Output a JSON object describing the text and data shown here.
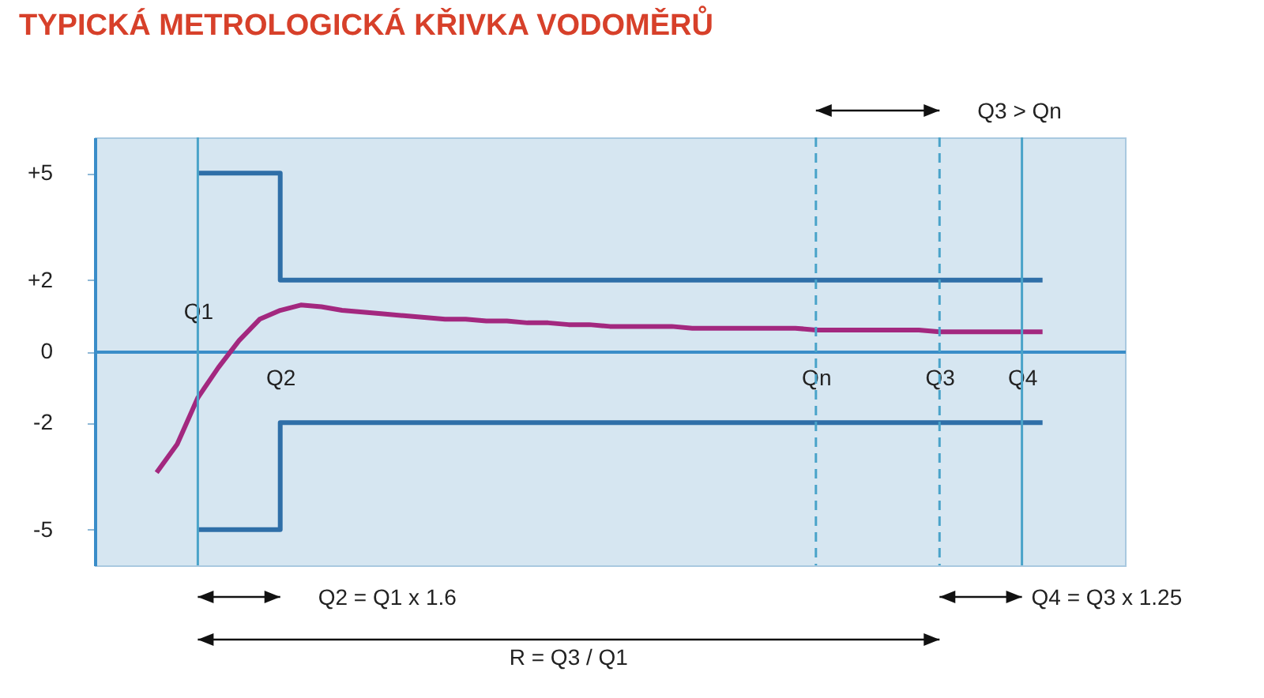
{
  "chart_data": {
    "type": "line",
    "title": "TYPICKÁ METROLOGICKÁ KŘIVKA VODOMĚRŮ",
    "categories": [
      null,
      null,
      null,
      null,
      null,
      "Q1",
      null,
      null,
      null,
      "Q2",
      null,
      null,
      null,
      null,
      null,
      null,
      null,
      null,
      null,
      null,
      null,
      null,
      null,
      null,
      null,
      null,
      null,
      null,
      null,
      null,
      null,
      null,
      null,
      null,
      null,
      "Qn",
      null,
      null,
      null,
      null,
      null,
      "Q3",
      null,
      null,
      null,
      "Q4",
      null,
      null,
      null,
      null,
      null
    ],
    "ylim": [
      -6,
      6
    ],
    "yticks": [
      -5,
      -2,
      0,
      {
        "value": 2,
        "label": "+2"
      },
      {
        "value": 5,
        "label": "+5"
      }
    ],
    "series": [
      {
        "type": "step",
        "color": "#2f6fa8",
        "values": [
          null,
          null,
          null,
          null,
          null,
          5,
          5,
          5,
          5,
          2,
          2,
          2,
          2,
          2,
          2,
          2,
          2,
          2,
          2,
          2,
          2,
          2,
          2,
          2,
          2,
          2,
          2,
          2,
          2,
          2,
          2,
          2,
          2,
          2,
          2,
          2,
          2,
          2,
          2,
          2,
          2,
          2,
          2,
          2,
          2,
          2,
          2,
          null,
          null,
          null,
          null
        ]
      },
      {
        "type": "step",
        "color": "#2f6fa8",
        "values": [
          null,
          null,
          null,
          null,
          null,
          -5,
          -5,
          -5,
          -5,
          -2,
          -2,
          -2,
          -2,
          -2,
          -2,
          -2,
          -2,
          -2,
          -2,
          -2,
          -2,
          -2,
          -2,
          -2,
          -2,
          -2,
          -2,
          -2,
          -2,
          -2,
          -2,
          -2,
          -2,
          -2,
          -2,
          -2,
          -2,
          -2,
          -2,
          -2,
          -2,
          -2,
          -2,
          -2,
          -2,
          -2,
          -2,
          null,
          null,
          null,
          null
        ]
      },
      {
        "color": "#a3287f",
        "values": [
          null,
          null,
          null,
          -3.4,
          -2.6,
          -1.3,
          -0.45,
          0.3,
          0.9,
          1.15,
          1.3,
          1.25,
          1.15,
          1.1,
          1.05,
          1,
          0.95,
          0.9,
          0.9,
          0.85,
          0.85,
          0.8,
          0.8,
          0.75,
          0.75,
          0.7,
          0.7,
          0.7,
          0.7,
          0.65,
          0.65,
          0.65,
          0.65,
          0.65,
          0.65,
          0.6,
          0.6,
          0.6,
          0.6,
          0.6,
          0.6,
          0.55,
          0.55,
          0.55,
          0.55,
          0.55,
          0.55,
          null,
          null,
          null,
          null
        ]
      }
    ],
    "ref_lines": [
      {
        "axis": "x",
        "value": "Q1",
        "color": "#4aa3c9",
        "line_style": "solid"
      },
      {
        "axis": "x",
        "value": "Qn",
        "color": "#4aa3c9",
        "line_style": "dashed"
      },
      {
        "axis": "x",
        "value": "Q3",
        "color": "#4aa3c9",
        "line_style": "dashed"
      },
      {
        "axis": "x",
        "value": "Q4",
        "color": "#4aa3c9",
        "line_style": "solid"
      }
    ],
    "annotations": [
      "Q3 > Qn",
      "Q2 = Q1 x 1.6",
      "R = Q3 / Q1",
      "Q4 = Q3 x 1.25"
    ]
  }
}
